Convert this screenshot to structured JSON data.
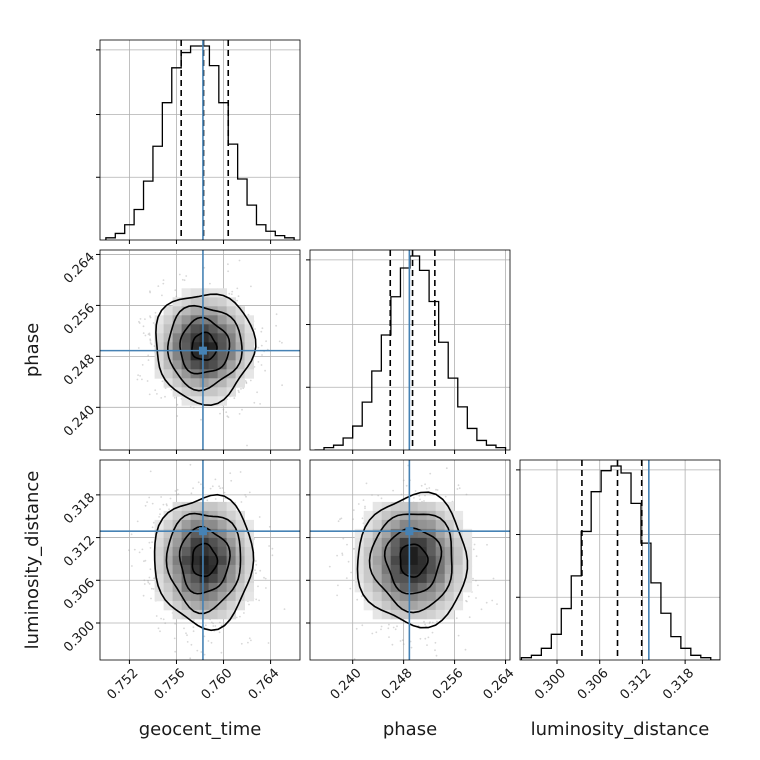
{
  "chart_data": {
    "type": "corner",
    "parameters": [
      "geocent_time",
      "phase",
      "luminosity_distance"
    ],
    "axis_labels": {
      "geocent_time": "geocent_time",
      "phase": "phase",
      "luminosity_distance": "luminosity_distance"
    },
    "ranges": {
      "geocent_time": [
        0.7495,
        0.7665
      ],
      "phase": [
        0.2333,
        0.2647
      ],
      "luminosity_distance": [
        0.2948,
        0.3229
      ]
    },
    "ticks": {
      "geocent_time": [
        "0.752",
        "0.756",
        "0.760",
        "0.764"
      ],
      "phase": [
        "0.240",
        "0.248",
        "0.256",
        "0.264"
      ],
      "luminosity_distance": [
        "0.300",
        "0.306",
        "0.312",
        "0.318"
      ]
    },
    "truth": {
      "geocent_time": 0.75825,
      "phase": 0.2489,
      "luminosity_distance": 0.3129
    },
    "histograms": {
      "geocent_time": {
        "bins": [
          0.75,
          0.7508,
          0.7516,
          0.7524,
          0.7532,
          0.754,
          0.7548,
          0.7556,
          0.7564,
          0.7572,
          0.758,
          0.7588,
          0.7596,
          0.7604,
          0.7612,
          0.762,
          0.7628,
          0.7636,
          0.7644,
          0.7652,
          0.766
        ],
        "counts": [
          1,
          3,
          7,
          14,
          27,
          43,
          63,
          79,
          86,
          89,
          89,
          80,
          63,
          44,
          28,
          16,
          7,
          4,
          2,
          1
        ],
        "quantiles": [
          0.7564,
          0.7583,
          0.7604
        ]
      },
      "phase": {
        "bins": [
          0.234,
          0.2355,
          0.237,
          0.2385,
          0.24,
          0.2415,
          0.243,
          0.2445,
          0.246,
          0.2475,
          0.249,
          0.2505,
          0.252,
          0.2535,
          0.255,
          0.2565,
          0.258,
          0.2595,
          0.261,
          0.2625,
          0.264
        ],
        "counts": [
          0,
          1,
          2,
          5,
          10,
          20,
          33,
          48,
          64,
          76,
          81,
          75,
          62,
          45,
          30,
          18,
          9,
          4,
          2,
          1
        ],
        "quantiles": [
          0.2459,
          0.2494,
          0.2529
        ]
      },
      "luminosity_distance": {
        "bins": [
          0.295,
          0.2964,
          0.2978,
          0.2992,
          0.3006,
          0.302,
          0.3034,
          0.3048,
          0.3062,
          0.3076,
          0.309,
          0.3104,
          0.3118,
          0.3132,
          0.3146,
          0.316,
          0.3174,
          0.3188,
          0.3202,
          0.3216,
          0.323
        ],
        "counts": [
          1,
          2,
          5,
          11,
          22,
          36,
          55,
          72,
          81,
          83,
          80,
          67,
          50,
          33,
          20,
          10,
          5,
          2,
          1,
          0
        ],
        "quantiles": [
          0.3035,
          0.3085,
          0.3119
        ]
      }
    },
    "density_2d": [
      {
        "x": "geocent_time",
        "y": "phase",
        "center": [
          0.75835,
          0.2495
        ],
        "sigma": [
          0.0021,
          0.0043
        ]
      },
      {
        "x": "geocent_time",
        "y": "luminosity_distance",
        "center": [
          0.75835,
          0.3088
        ],
        "sigma": [
          0.0021,
          0.0046
        ]
      },
      {
        "x": "phase",
        "y": "luminosity_distance",
        "center": [
          0.2495,
          0.3088
        ],
        "sigma": [
          0.0043,
          0.0046
        ]
      }
    ],
    "contour_levels": [
      0.5,
      1.0,
      1.5,
      2.0
    ],
    "colors": {
      "hist": "#000000",
      "truth": "#4682b4",
      "grid": "#b0b0b0",
      "scatter": "#a9a9a9"
    },
    "grid": true
  }
}
